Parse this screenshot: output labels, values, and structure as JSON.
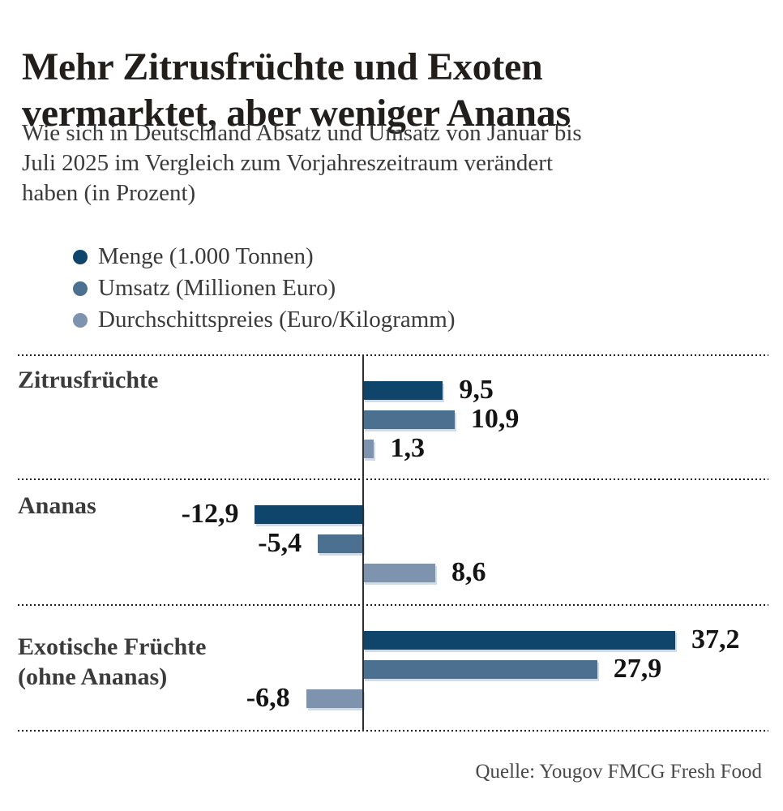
{
  "header": {
    "title": "Mehr Zitrusfrüchte und Exoten vermarktet, aber weniger Ananas",
    "title_lines": [
      "Mehr Zitrusfrüchte und Exoten",
      "vermarktet, aber weniger Ananas"
    ],
    "subtitle": "Wie sich in Deutschland Absatz und Umsatz von Januar bis Juli 2025 im Vergleich zum Vorjahreszeitraum verändert haben (in Prozent)",
    "subtitle_lines": [
      "Wie sich in Deutschland Absatz und Umsatz von Januar bis",
      "Juli 2025 im Vergleich zum Vorjahreszeitraum verändert",
      "haben (in Prozent)"
    ]
  },
  "legend": [
    {
      "label": "Menge (1.000 Tonnen)",
      "color": "#10456b",
      "marker": "circle-icon"
    },
    {
      "label": "Umsatz (Millionen Euro)",
      "color": "#4b7090",
      "marker": "circle-icon"
    },
    {
      "label": "Durchschittspreies (Euro/Kilogramm)",
      "color": "#7e93ad",
      "marker": "circle-icon"
    }
  ],
  "source": "Quelle: Yougov FMCG Fresh Food",
  "colors": {
    "series_dark": "#10456b",
    "series_medium": "#4b7090",
    "series_light": "#7e93ad",
    "bar_halo": "#cddce8",
    "text_dark": "#211e1b",
    "text_gray": "#3a3a3a"
  },
  "chart_data": {
    "type": "bar",
    "orientation": "horizontal",
    "unit": "percent",
    "title": "Mehr Zitrusfrüchte und Exoten vermarktet, aber weniger Ananas",
    "subtitle": "Wie sich in Deutschland Absatz und Umsatz von Januar bis Juli 2025 im Vergleich zum Vorjahreszeitraum verändert haben (in Prozent)",
    "categories": [
      "Zitrusfrüchte",
      "Ananas",
      "Exotische Früchte (ohne Ananas)"
    ],
    "category_label_lines": [
      [
        "Zitrusfrüchte"
      ],
      [
        "Ananas"
      ],
      [
        "Exotische Früchte",
        "(ohne Ananas)"
      ]
    ],
    "series": [
      {
        "name": "Menge (1.000 Tonnen)",
        "color": "#10456b",
        "values": [
          9.5,
          -12.9,
          37.2
        ]
      },
      {
        "name": "Umsatz (Millionen Euro)",
        "color": "#4b7090",
        "values": [
          10.9,
          -5.4,
          27.9
        ]
      },
      {
        "name": "Durchschittspreies (Euro/Kilogramm)",
        "color": "#7e93ad",
        "values": [
          1.3,
          8.6,
          -6.8
        ]
      }
    ],
    "value_labels_by_category": [
      [
        "9,5",
        "10,9",
        "1,3"
      ],
      [
        "-12,9",
        "-5,4",
        "8,6"
      ],
      [
        "37,2",
        "27,9",
        "-6,8"
      ]
    ],
    "baseline": 0,
    "xlim": [
      -15,
      40
    ],
    "grid": "dotted horizontal separators between categories",
    "legend_position": "top-left",
    "source": "Quelle: Yougov FMCG Fresh Food"
  }
}
